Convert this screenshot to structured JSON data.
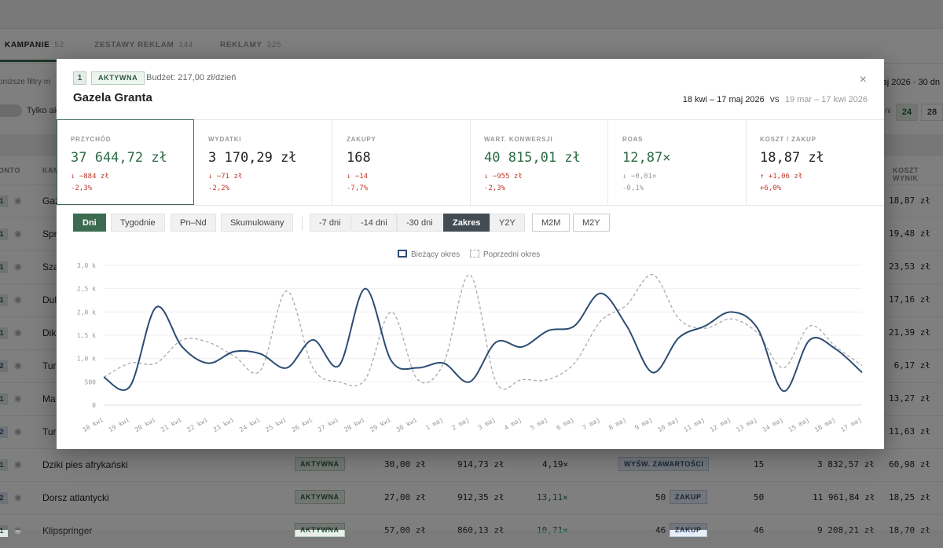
{
  "background": {
    "tabs": [
      {
        "label": "KAMPANIE",
        "count": "52"
      },
      {
        "label": "ZESTAWY REKLAM",
        "count": "144"
      },
      {
        "label": "REKLAMY",
        "count": "325"
      }
    ],
    "filter_hint": "oniższe filtry m",
    "date_hint": "maj 2026 · 30 dn",
    "toggle_label": "Tylko ak",
    "pager_hint": "ni",
    "pager": [
      "24",
      "28"
    ],
    "col_left": "ONTO",
    "col_name": "KAM",
    "col_right": "KOSZT WYNIK",
    "rows": [
      {
        "idx": "1",
        "name": "Gaz",
        "kw": "18,87 zł"
      },
      {
        "idx": "1",
        "name": "Spr",
        "kw": "19,48 zł"
      },
      {
        "idx": "1",
        "name": "Sza",
        "kw": "23,53 zł"
      },
      {
        "idx": "1",
        "name": "Dul",
        "kw": "17,16 zł"
      },
      {
        "idx": "1",
        "name": "Dik",
        "kw": "21,39 zł"
      },
      {
        "idx": "2",
        "name": "Tur",
        "kw": "6,17 zł"
      },
      {
        "idx": "1",
        "name": "Ma",
        "kw": "13,27 zł"
      },
      {
        "idx": "2",
        "name": "Tur",
        "kw": "11,63 zł"
      }
    ],
    "full_rows": [
      {
        "idx": "1",
        "name": "Dziki pies afrykański",
        "status": "AKTYWNA",
        "budget": "30,00 zł",
        "spend": "914,73 zł",
        "roas": "4,19×",
        "badge_num": "",
        "badge": "WYŚW. ZAWARTOŚCI",
        "results": "15",
        "value": "3 832,57 zł",
        "kw": "60,98 zł"
      },
      {
        "idx": "2",
        "name": "Dorsz atlantycki",
        "status": "AKTYWNA",
        "budget": "27,00 zł",
        "spend": "912,35 zł",
        "roas": "13,11×",
        "badge_num": "50",
        "badge": "ZAKUP",
        "results": "50",
        "value": "11 961,84 zł",
        "kw": "18,25 zł"
      },
      {
        "idx": "1",
        "name": "Klipspringer",
        "status": "AKTYWNA",
        "budget": "57,00 zł",
        "spend": "860,13 zł",
        "roas": "10,71×",
        "badge_num": "46",
        "badge": "ZAKUP",
        "results": "46",
        "value": "9 208,21 zł",
        "kw": "18,70 zł"
      }
    ]
  },
  "modal": {
    "index": "1",
    "status": "AKTYWNA",
    "budget": "Budżet: 217,00 zł/dzień",
    "title": "Gazela Granta",
    "close_icon": "close-icon",
    "date_current": "18 kwi – 17 maj 2026",
    "vs": "vs",
    "date_previous": "19 mar – 17 kwi 2026",
    "kpis": [
      {
        "label": "PRZYCHÓD",
        "value": "37 644,72 zł",
        "delta_abs": "↓ −884 zł",
        "delta_pct": "-2,3%"
      },
      {
        "label": "WYDATKI",
        "value": "3 170,29 zł",
        "delta_abs": "↓ −71 zł",
        "delta_pct": "-2,2%"
      },
      {
        "label": "ZAKUPY",
        "value": "168",
        "delta_abs": "↓ −14",
        "delta_pct": "-7,7%"
      },
      {
        "label": "WART. KONWERSJI",
        "value": "40 815,01 zł",
        "delta_abs": "↓ −955 zł",
        "delta_pct": "-2,3%"
      },
      {
        "label": "ROAS",
        "value": "12,87×",
        "delta_abs": "↓ −0,01×",
        "delta_pct": "-0,1%"
      },
      {
        "label": "KOSZT / ZAKUP",
        "value": "18,87 zł",
        "delta_abs": "↑ +1,06 zł",
        "delta_pct": "+6,0%"
      }
    ],
    "granularity_buttons": [
      "Dni",
      "Tygodnie",
      "Pn–Nd",
      "Skumulowany"
    ],
    "range_buttons": [
      "-7 dni",
      "-14 dni",
      "-30 dni",
      "Zakres",
      "Y2Y"
    ],
    "compare_buttons": [
      "M2M",
      "M2Y"
    ],
    "colors": {
      "accent_green": "#3d6b50",
      "current_series": "#2b4c72",
      "previous_series": "#aaaaaa",
      "negative": "#c0392b"
    }
  },
  "chart_data": {
    "type": "line",
    "title": "",
    "xlabel": "",
    "ylabel": "",
    "legend_placement": "top-center",
    "grid": true,
    "ylim": [
      0,
      3000
    ],
    "y_ticks": [
      0,
      500,
      1000,
      1500,
      2000,
      2500,
      3000
    ],
    "y_tick_labels": [
      "0",
      "500",
      "1,0 k",
      "1,5 k",
      "2,0 k",
      "2,5 k",
      "3,0 k"
    ],
    "categories": [
      "18 kwi",
      "19 kwi",
      "20 kwi",
      "21 kwi",
      "22 kwi",
      "23 kwi",
      "24 kwi",
      "25 kwi",
      "26 kwi",
      "27 kwi",
      "28 kwi",
      "29 kwi",
      "30 kwi",
      "1 maj",
      "2 maj",
      "3 maj",
      "4 maj",
      "5 maj",
      "6 maj",
      "7 maj",
      "8 maj",
      "9 maj",
      "10 maj",
      "11 maj",
      "12 maj",
      "13 maj",
      "14 maj",
      "15 maj",
      "16 maj",
      "17 maj"
    ],
    "series": [
      {
        "name": "Bieżący okres",
        "style": "solid",
        "values": [
          600,
          400,
          2100,
          1250,
          900,
          1150,
          1100,
          800,
          1400,
          850,
          2500,
          950,
          800,
          900,
          500,
          1350,
          1250,
          1600,
          1700,
          2400,
          1700,
          700,
          1450,
          1700,
          2000,
          1650,
          300,
          1400,
          1200,
          700
        ]
      },
      {
        "name": "Poprzedni okres",
        "style": "dashed",
        "values": [
          600,
          900,
          900,
          1400,
          1350,
          1050,
          750,
          2450,
          800,
          500,
          550,
          2000,
          550,
          900,
          2800,
          500,
          550,
          550,
          900,
          1800,
          2150,
          2800,
          1850,
          1650,
          1850,
          1550,
          800,
          1700,
          1250,
          850
        ]
      }
    ]
  }
}
